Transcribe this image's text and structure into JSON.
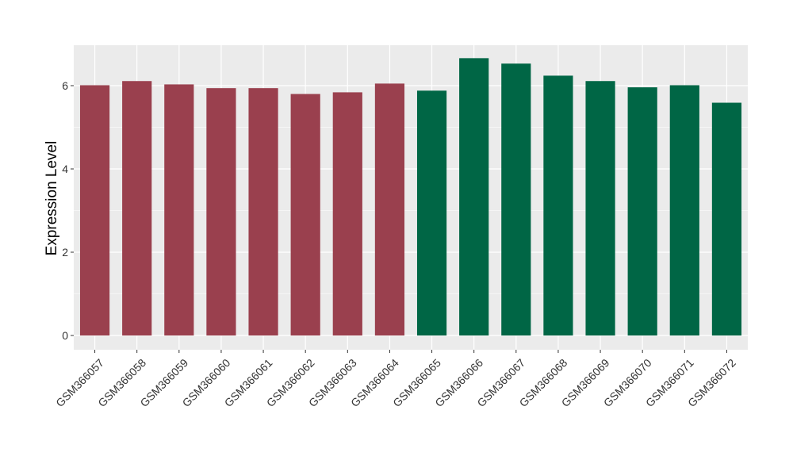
{
  "chart_data": {
    "type": "bar",
    "title": "",
    "xlabel": "",
    "ylabel": "Expression Level",
    "ylim": [
      0,
      7
    ],
    "yticks": [
      0,
      2,
      4,
      6
    ],
    "grid": true,
    "legend": "none",
    "categories": [
      "GSM366057",
      "GSM366058",
      "GSM366059",
      "GSM366060",
      "GSM366061",
      "GSM366062",
      "GSM366063",
      "GSM366064",
      "GSM366065",
      "GSM366066",
      "GSM366067",
      "GSM366068",
      "GSM366069",
      "GSM366070",
      "GSM366071",
      "GSM366072"
    ],
    "values": [
      6.01,
      6.11,
      6.03,
      5.94,
      5.94,
      5.8,
      5.84,
      6.05,
      5.88,
      6.66,
      6.53,
      6.24,
      6.11,
      5.96,
      6.01,
      5.59
    ],
    "groups": [
      0,
      0,
      0,
      0,
      0,
      0,
      0,
      0,
      1,
      1,
      1,
      1,
      1,
      1,
      1,
      1
    ],
    "colors": [
      "#9a404e",
      "#006645"
    ],
    "panel_background": "#ebebeb",
    "grid_color": "#ffffff"
  }
}
